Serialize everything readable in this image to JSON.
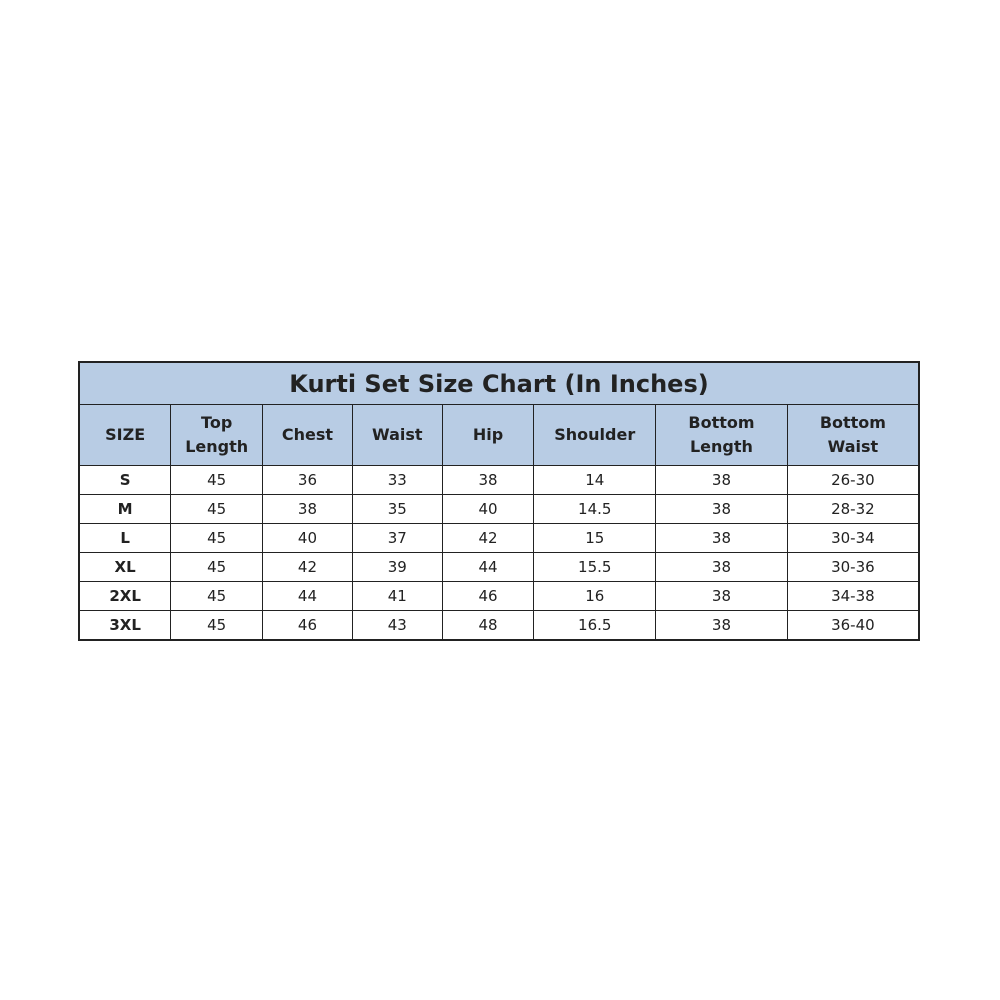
{
  "title": "Kurti Set Size Chart (In Inches)",
  "colors": {
    "header_bg": "#b8cce4",
    "border": "#222222"
  },
  "headers": [
    "SIZE",
    "Top\nLength",
    "Chest",
    "Waist",
    "Hip",
    "Shoulder",
    "Bottom\nLength",
    "Bottom\nWaist"
  ],
  "rows": [
    [
      "S",
      "45",
      "36",
      "33",
      "38",
      "14",
      "38",
      "26-30"
    ],
    [
      "M",
      "45",
      "38",
      "35",
      "40",
      "14.5",
      "38",
      "28-32"
    ],
    [
      "L",
      "45",
      "40",
      "37",
      "42",
      "15",
      "38",
      "30-34"
    ],
    [
      "XL",
      "45",
      "42",
      "39",
      "44",
      "15.5",
      "38",
      "30-36"
    ],
    [
      "2XL",
      "45",
      "44",
      "41",
      "46",
      "16",
      "38",
      "34-38"
    ],
    [
      "3XL",
      "45",
      "46",
      "43",
      "48",
      "16.5",
      "38",
      "36-40"
    ]
  ]
}
